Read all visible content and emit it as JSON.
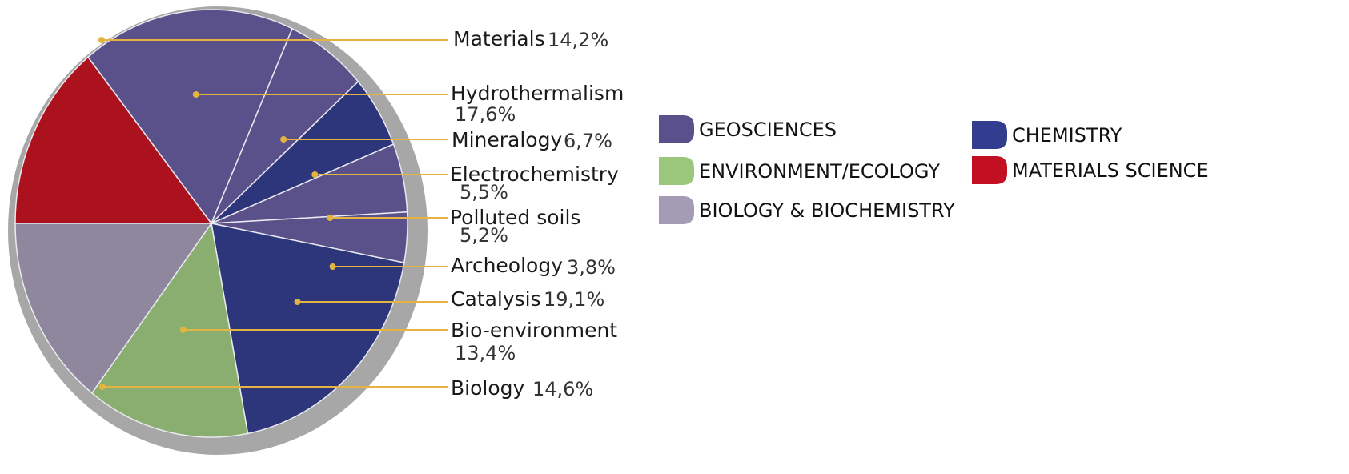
{
  "chart_data": {
    "type": "pie",
    "title": "",
    "slices": [
      {
        "name": "Materials",
        "value": 14.2,
        "value_label": "14,2%",
        "group": "MATERIALS SCIENCE"
      },
      {
        "name": "Hydrothermalism",
        "value": 17.6,
        "value_label": "17,6%",
        "group": "GEOSCIENCES"
      },
      {
        "name": "Mineralogy",
        "value": 6.7,
        "value_label": "6,7%",
        "group": "GEOSCIENCES"
      },
      {
        "name": "Electrochemistry",
        "value": 5.5,
        "value_label": "5,5%",
        "group": "CHEMISTRY"
      },
      {
        "name": "Polluted soils",
        "value": 5.2,
        "value_label": "5,2%",
        "group": "GEOSCIENCES"
      },
      {
        "name": "Archeology",
        "value": 3.8,
        "value_label": "3,8%",
        "group": "GEOSCIENCES"
      },
      {
        "name": "Catalysis",
        "value": 19.1,
        "value_label": "19,1%",
        "group": "CHEMISTRY"
      },
      {
        "name": "Bio-environment",
        "value": 13.4,
        "value_label": "13,4%",
        "group": "ENVIRONMENT/ECOLOGY"
      },
      {
        "name": "Biology",
        "value": 14.6,
        "value_label": "14,6%",
        "group": "BIOLOGY & BIOCHEMISTRY"
      }
    ],
    "legend": [
      {
        "label": "GEOSCIENCES",
        "color": "#5a518c"
      },
      {
        "label": "ENVIRONMENT/ECOLOGY",
        "color": "#9ac77c"
      },
      {
        "label": "BIOLOGY & BIOCHEMISTRY",
        "color": "#a39cb4"
      },
      {
        "label": "CHEMISTRY",
        "color": "#323d8f"
      },
      {
        "label": "MATERIALS SCIENCE",
        "color": "#c30f22"
      }
    ],
    "slice_colors": {
      "GEOSCIENCES": "#5a518a",
      "ENVIRONMENT/ECOLOGY": "#8aae6f",
      "BIOLOGY & BIOCHEMISTRY": "#8f879e",
      "CHEMISTRY": "#2d357b",
      "MATERIALS SCIENCE": "#ac111e"
    },
    "leader_color": "#e3b43f",
    "legend_placement": "right"
  }
}
